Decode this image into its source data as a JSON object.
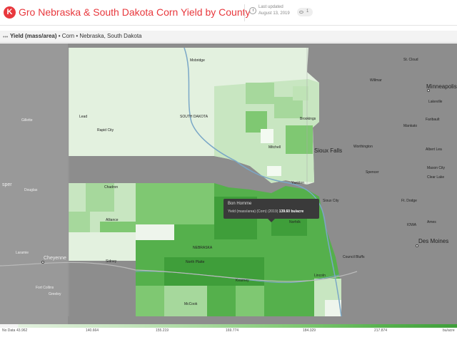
{
  "header": {
    "logo_text": "K",
    "title": "Gro Nebraska & South Dakota Corn Yield by County",
    "updated_label": "Last updated",
    "updated_date": "August 13, 2019",
    "views_count": "1"
  },
  "breadcrumb": {
    "metric": "Yield (mass/area)",
    "rest": " • Corn • Nebraska, South Dakota"
  },
  "tooltip": {
    "county": "Bon Homme",
    "line_prefix": "Yield (mass/area) (Corn) (2019)",
    "value": "139.60 bu/acre"
  },
  "places": {
    "mobridge": "Mobridge",
    "south_dakota": "SOUTH DAKOTA",
    "lead": "Lead",
    "rapid_city": "Rapid City",
    "gillette": "Gillette",
    "mitchell": "Mitchell",
    "brookings": "Brookings",
    "sioux_falls": "Sioux Falls",
    "yankton": "Yankton",
    "sioux_city": "Sioux City",
    "chadron": "Chadron",
    "alliance": "Alliance",
    "norfolk": "Norfolk",
    "nebraska": "NEBRASKA",
    "north_platte": "North Platte",
    "sidney": "Sidney",
    "cheyenne": "Cheyenne",
    "laramie": "Laramie",
    "casper": "sper",
    "douglas": "Douglas",
    "fort_collins": "Fort Collins",
    "greeley": "Greeley",
    "kearney": "Kearney",
    "lincoln": "Lincoln",
    "council_bluffs": "Council Bluffs",
    "mccook": "McCook",
    "des_moines": "Des Moines",
    "minneapolis": "Minneapolis",
    "st_cloud": "St. Cloud",
    "willmar": "Willmar",
    "lakeville": "Lakeville",
    "mankato": "Mankato",
    "faribault": "Faribault",
    "albert_lea": "Albert Lea",
    "fort_dodge": "Ft. Dodge",
    "spencer": "Spencer",
    "ames": "Ames",
    "iowa": "IOWA",
    "worthington": "Worthington",
    "mason_city": "Mason City",
    "clear_lake": "Clear Lake"
  },
  "legend": {
    "no_data": "No Data",
    "ticks": [
      "43.962",
      "140.664",
      "155.219",
      "169.774",
      "184.329",
      "217.874"
    ],
    "unit": "bu/acre"
  },
  "colors": {
    "title": "#e8383d",
    "map_background": "#8d8d8d",
    "sd_fill": "#e3f1df",
    "ne_fill": "#55b04c",
    "dark_green": "#3f9e3a"
  }
}
